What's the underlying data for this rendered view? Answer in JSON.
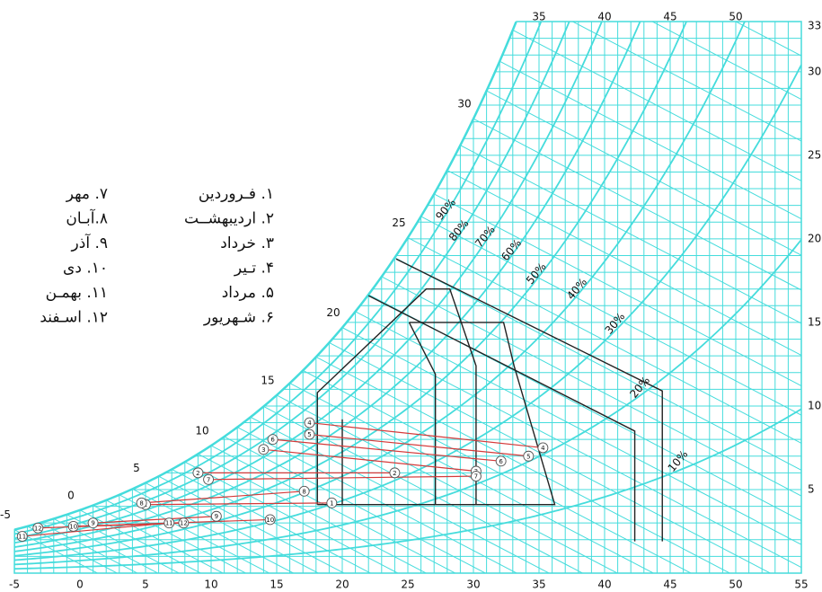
{
  "chart_data": {
    "type": "psychrometric",
    "xlim": [
      -5,
      55
    ],
    "xticks": [
      -5,
      0,
      5,
      10,
      15,
      20,
      25,
      30,
      35,
      40,
      45,
      50,
      55
    ],
    "ylim": [
      0,
      33
    ],
    "yticks": [
      5,
      10,
      15,
      20,
      25,
      30,
      33
    ],
    "wet_bulb_ticks": [
      -5,
      0,
      5,
      10,
      15,
      20,
      25,
      30,
      35,
      40,
      45,
      50
    ],
    "rh_curves": [
      {
        "value": 90,
        "label": "90%"
      },
      {
        "value": 80,
        "label": "80%"
      },
      {
        "value": 70,
        "label": "70%"
      },
      {
        "value": 60,
        "label": "60%"
      },
      {
        "value": 50,
        "label": "50%"
      },
      {
        "value": 40,
        "label": "40%"
      },
      {
        "value": 30,
        "label": "30%"
      },
      {
        "value": 20,
        "label": "20%"
      },
      {
        "value": 10,
        "label": "10%"
      }
    ],
    "grid_color": "#45dcdc",
    "zone_color": "#222222",
    "month_color": "#d43a3a",
    "zones": [
      {
        "t": [
          18.1,
          18.1,
          26.4,
          28.2,
          30.2,
          30.2
        ],
        "w": [
          4.1,
          10.8,
          17.0,
          17.0,
          12.4,
          4.1
        ]
      },
      {
        "t": [
          25.1,
          32.3,
          33.1,
          36.2,
          18.1
        ],
        "w": [
          15.0,
          15.0,
          12.4,
          4.1,
          4.1
        ]
      },
      {
        "t": [
          25.1,
          27.1,
          27.1
        ],
        "w": [
          15.0,
          11.9,
          4.1
        ]
      },
      {
        "t": [
          20.0,
          20.0
        ],
        "w": [
          9.2,
          4.1
        ]
      },
      {
        "t": [
          24.1,
          44.4,
          44.4
        ],
        "w": [
          18.8,
          10.9,
          1.9
        ]
      },
      {
        "t": [
          22.0,
          42.3,
          42.3
        ],
        "w": [
          16.6,
          8.5,
          1.9
        ]
      }
    ],
    "months": [
      {
        "label": "1",
        "t": [
          5.0,
          19.2
        ],
        "w": [
          4.1,
          4.2
        ]
      },
      {
        "label": "2",
        "t": [
          9.0,
          24.0
        ],
        "w": [
          6.0,
          6.0
        ]
      },
      {
        "label": "3",
        "t": [
          14.0,
          30.2
        ],
        "w": [
          7.4,
          6.1
        ]
      },
      {
        "label": "4",
        "t": [
          17.5,
          35.3
        ],
        "w": [
          9.0,
          7.5
        ]
      },
      {
        "label": "5",
        "t": [
          17.5,
          34.2
        ],
        "w": [
          8.3,
          7.0
        ]
      },
      {
        "label": "6",
        "t": [
          14.7,
          32.1
        ],
        "w": [
          8.0,
          6.7
        ]
      },
      {
        "label": "7",
        "t": [
          9.8,
          30.2
        ],
        "w": [
          5.6,
          5.8
        ]
      },
      {
        "label": "8",
        "t": [
          4.7,
          17.1
        ],
        "w": [
          4.2,
          4.9
        ]
      },
      {
        "label": "9",
        "t": [
          1.0,
          10.4
        ],
        "w": [
          3.0,
          3.4
        ]
      },
      {
        "label": "10",
        "t": [
          -0.5,
          14.5
        ],
        "w": [
          2.8,
          3.2
        ]
      },
      {
        "label": "11",
        "t": [
          -4.4,
          6.8
        ],
        "w": [
          2.2,
          3.0
        ]
      },
      {
        "label": "12",
        "t": [
          -3.2,
          7.9
        ],
        "w": [
          2.7,
          3.0
        ]
      }
    ],
    "legend": [
      "۱. فـروردین",
      "۲. اردیبهشــت",
      "۳. خرداد",
      "۴. تـیر",
      "۵. مرداد",
      "۶. شـهریور",
      "۷. مهر",
      "۸.آبـان",
      "۹. آذر",
      "۱۰. دی",
      "۱۱. بهمـن",
      "۱۲. اسـفند"
    ]
  }
}
